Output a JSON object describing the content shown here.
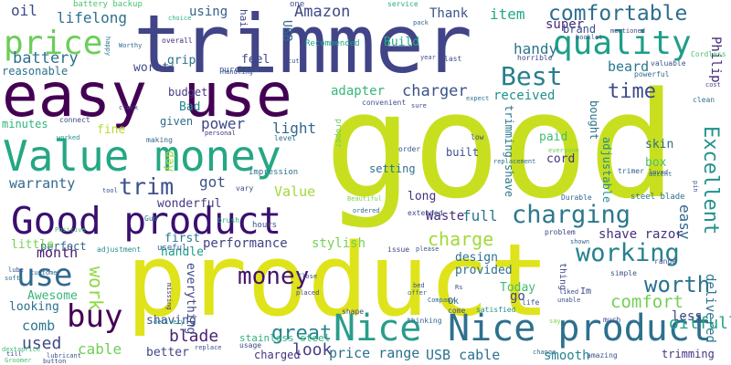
{
  "words": [
    {
      "text": "good",
      "color": "#c8df1f"
    },
    {
      "text": "product",
      "color": "#dfe31a"
    },
    {
      "text": "trimmer",
      "color": "#414487"
    },
    {
      "text": "easy use",
      "color": "#440154"
    },
    {
      "text": "Value money",
      "color": "#25a784"
    },
    {
      "text": "Good product",
      "color": "#3b0f70"
    },
    {
      "text": "Nice product",
      "color": "#2d708e"
    },
    {
      "text": "Nice",
      "color": "#2a9d8a"
    },
    {
      "text": "price",
      "color": "#6ccd5a"
    },
    {
      "text": "quality",
      "color": "#1f9e89"
    },
    {
      "text": "Best",
      "color": "#277f8e"
    },
    {
      "text": "charging",
      "color": "#2a788e"
    },
    {
      "text": "working",
      "color": "#26818e"
    },
    {
      "text": "comfortable",
      "color": "#2e6d8e"
    },
    {
      "text": "buy",
      "color": "#440154"
    },
    {
      "text": "use",
      "color": "#31688e"
    },
    {
      "text": "money",
      "color": "#471365"
    },
    {
      "text": "worth",
      "color": "#2c728e"
    },
    {
      "text": "time",
      "color": "#3e4a89"
    },
    {
      "text": "Excellent",
      "color": "#21918c"
    },
    {
      "text": "Amazon",
      "color": "#3f4788"
    },
    {
      "text": "great",
      "color": "#25848e"
    },
    {
      "text": "trim",
      "color": "#3c508b"
    },
    {
      "text": "charge",
      "color": "#a0da39"
    },
    {
      "text": "charger",
      "color": "#3b528b"
    },
    {
      "text": "comfort",
      "color": "#73d056"
    },
    {
      "text": "work",
      "color": "#90d743"
    },
    {
      "text": "battery",
      "color": "#2c728e"
    },
    {
      "text": "Philip",
      "color": "#482878"
    },
    {
      "text": "oil",
      "color": "#3e4989"
    },
    {
      "text": "lifelong",
      "color": "#2d708e"
    },
    {
      "text": "item",
      "color": "#22a785"
    },
    {
      "text": "super",
      "color": "#472c7a"
    },
    {
      "text": "handy",
      "color": "#2c738e"
    },
    {
      "text": "beard",
      "color": "#2a788e"
    },
    {
      "text": "received",
      "color": "#21918c"
    },
    {
      "text": "adapter",
      "color": "#35b779"
    },
    {
      "text": "power",
      "color": "#404688"
    },
    {
      "text": "light",
      "color": "#31688e"
    },
    {
      "text": "got",
      "color": "#3b528b"
    },
    {
      "text": "Value",
      "color": "#a0da39"
    },
    {
      "text": "warranty",
      "color": "#31688e"
    },
    {
      "text": "month",
      "color": "#481a6c"
    },
    {
      "text": "look",
      "color": "#424086"
    },
    {
      "text": "blade",
      "color": "#482475"
    },
    {
      "text": "used",
      "color": "#3e4989"
    },
    {
      "text": "comb",
      "color": "#2a788e"
    },
    {
      "text": "cable",
      "color": "#6ece58"
    },
    {
      "text": "USB cable",
      "color": "#2c728e"
    },
    {
      "text": "price range",
      "color": "#2d708e"
    },
    {
      "text": "smooth",
      "color": "#25848e"
    },
    {
      "text": "trimming",
      "color": "#46337f"
    },
    {
      "text": "oilfull",
      "color": "#20a386"
    },
    {
      "text": "delivered",
      "color": "#2a768e"
    },
    {
      "text": "less",
      "color": "#3e4a89"
    },
    {
      "text": "full",
      "color": "#2a768e"
    },
    {
      "text": "easy",
      "color": "#31688e"
    },
    {
      "text": "shave razor",
      "color": "#472f7d"
    },
    {
      "text": "performance",
      "color": "#414487"
    },
    {
      "text": "stylish",
      "color": "#75d054"
    },
    {
      "text": "Awesome",
      "color": "#35b779"
    },
    {
      "text": "shaving",
      "color": "#3b528b"
    },
    {
      "text": "better",
      "color": "#404688"
    },
    {
      "text": "charged",
      "color": "#46327e"
    },
    {
      "text": "Waste",
      "color": "#472c7a"
    },
    {
      "text": "design",
      "color": "#2c728e"
    },
    {
      "text": "provided",
      "color": "#2e6e8e"
    },
    {
      "text": "go",
      "color": "#404688"
    },
    {
      "text": "Today",
      "color": "#3fbc73"
    },
    {
      "text": "first",
      "color": "#2a788e"
    },
    {
      "text": "handle",
      "color": "#1f9a8a"
    },
    {
      "text": "wonderful",
      "color": "#443983"
    },
    {
      "text": "perfect",
      "color": "#32658e"
    },
    {
      "text": "looking",
      "color": "#2c718e"
    },
    {
      "text": "little",
      "color": "#7ad151"
    },
    {
      "text": "everything",
      "color": "#404688"
    },
    {
      "text": "long",
      "color": "#46327e"
    },
    {
      "text": "setting",
      "color": "#2d708e"
    },
    {
      "text": "built",
      "color": "#3b518b"
    },
    {
      "text": "paid",
      "color": "#3fbc73"
    },
    {
      "text": "cord",
      "color": "#46327e"
    },
    {
      "text": "skin",
      "color": "#2e6d8e"
    },
    {
      "text": "box",
      "color": "#4ac16d"
    },
    {
      "text": "adjustable",
      "color": "#218f8d"
    },
    {
      "text": "trimming shave",
      "color": "#2a788e"
    },
    {
      "text": "received",
      "color": "#21918c"
    },
    {
      "text": "bought",
      "color": "#2c738e"
    },
    {
      "text": "grip",
      "color": "#2c718e"
    },
    {
      "text": "feel",
      "color": "#3e4989"
    },
    {
      "text": "using",
      "color": "#34608d"
    },
    {
      "text": "worst",
      "color": "#3e4989"
    },
    {
      "text": "budget",
      "color": "#443983"
    },
    {
      "text": "Bad",
      "color": "#23898e"
    },
    {
      "text": "given",
      "color": "#306a8e"
    },
    {
      "text": "reasonable",
      "color": "#2d708e"
    },
    {
      "text": "minutes",
      "color": "#2fb47c"
    },
    {
      "text": "fine",
      "color": "#b5de2b"
    },
    {
      "text": "day",
      "color": "#a8db34"
    },
    {
      "text": "USB",
      "color": "#31688e"
    },
    {
      "text": "Build",
      "color": "#22a884"
    },
    {
      "text": "Thank",
      "color": "#3b528b"
    },
    {
      "text": "brand",
      "color": "#3e4a89"
    },
    {
      "text": "hair",
      "color": "#3e4989"
    },
    {
      "text": "battery backup",
      "color": "#4ac16d"
    },
    {
      "text": "Recommended",
      "color": "#1fa088"
    },
    {
      "text": "service",
      "color": "#29af7f"
    },
    {
      "text": "choice",
      "color": "#2eb37c"
    },
    {
      "text": "one",
      "color": "#3b528b"
    },
    {
      "text": "purchase",
      "color": "#34618d"
    },
    {
      "text": "overall",
      "color": "#472d7b"
    },
    {
      "text": "connect",
      "color": "#3e4989"
    },
    {
      "text": "worked",
      "color": "#20928c"
    },
    {
      "text": "making",
      "color": "#31688e"
    },
    {
      "text": "personal",
      "color": "#46327e"
    },
    {
      "text": "level",
      "color": "#2c728e"
    },
    {
      "text": "impression",
      "color": "#2c728e"
    },
    {
      "text": "vary",
      "color": "#3e4989"
    },
    {
      "text": "brush",
      "color": "#25ac82"
    },
    {
      "text": "hours",
      "color": "#3b528b"
    },
    {
      "text": "useful",
      "color": "#34608d"
    },
    {
      "text": "adjustment",
      "color": "#21918c"
    },
    {
      "text": "Gud",
      "color": "#2c728e"
    },
    {
      "text": "Positive",
      "color": "#3fbc73"
    },
    {
      "text": "lube",
      "color": "#3b528b"
    },
    {
      "text": "soft",
      "color": "#2c728e"
    },
    {
      "text": "customer",
      "color": "#31688e"
    },
    {
      "text": "till",
      "color": "#3e4989"
    },
    {
      "text": "Groomer",
      "color": "#4ac16d"
    },
    {
      "text": "lubricant",
      "color": "#3b528b"
    },
    {
      "text": "button",
      "color": "#3e4989"
    },
    {
      "text": "delivery",
      "color": "#25848e"
    },
    {
      "text": "stainless steel",
      "color": "#2eb37c"
    },
    {
      "text": "usage",
      "color": "#3e4989"
    },
    {
      "text": "replace",
      "color": "#3b528b"
    },
    {
      "text": "missing",
      "color": "#46327e"
    },
    {
      "text": "shape",
      "color": "#3e4989"
    },
    {
      "text": "thinking",
      "color": "#31688e"
    },
    {
      "text": "satisfied",
      "color": "#21918c"
    },
    {
      "text": "life",
      "color": "#3b528b"
    },
    {
      "text": "problem",
      "color": "#3e4989"
    },
    {
      "text": "Durable",
      "color": "#31688e"
    },
    {
      "text": "steel blade",
      "color": "#2c728e"
    },
    {
      "text": "trimer",
      "color": "#34608d"
    },
    {
      "text": "range",
      "color": "#3e4989"
    },
    {
      "text": "simple",
      "color": "#3b528b"
    },
    {
      "text": "much",
      "color": "#3e4989"
    },
    {
      "text": "amazing",
      "color": "#3b528b"
    },
    {
      "text": "change",
      "color": "#31688e"
    },
    {
      "text": "Cordless",
      "color": "#4ac16d"
    },
    {
      "text": "powerful",
      "color": "#31688e"
    },
    {
      "text": "valuable",
      "color": "#3b528b"
    },
    {
      "text": "clean",
      "color": "#2c728e"
    },
    {
      "text": "cost",
      "color": "#3e4989"
    },
    {
      "text": "loved",
      "color": "#3b528b"
    },
    {
      "text": "decent",
      "color": "#31688e"
    },
    {
      "text": "Beautiful",
      "color": "#7ad151"
    },
    {
      "text": "extended",
      "color": "#3e4989"
    },
    {
      "text": "order",
      "color": "#3b528b"
    },
    {
      "text": "ordered",
      "color": "#31688e"
    },
    {
      "text": "replacement",
      "color": "#2c728e"
    },
    {
      "text": "issue",
      "color": "#3e4989"
    },
    {
      "text": "please",
      "color": "#3b528b"
    },
    {
      "text": "Ok",
      "color": "#31688e"
    },
    {
      "text": "come",
      "color": "#3e4989"
    },
    {
      "text": "bed",
      "color": "#3b528b"
    },
    {
      "text": "offer",
      "color": "#2c728e"
    },
    {
      "text": "placed",
      "color": "#3e4989"
    },
    {
      "text": "Close",
      "color": "#3b528b"
    },
    {
      "text": "low",
      "color": "#3e4989"
    },
    {
      "text": "proper",
      "color": "#6ece58"
    },
    {
      "text": "horrible",
      "color": "#3e4989"
    },
    {
      "text": "last",
      "color": "#3b528b"
    },
    {
      "text": "Worthy",
      "color": "#31688e"
    },
    {
      "text": "handling",
      "color": "#3e4989"
    },
    {
      "text": "cut",
      "color": "#3b528b"
    },
    {
      "text": "happy",
      "color": "#2c728e"
    },
    {
      "text": "clock",
      "color": "#3e4989"
    },
    {
      "text": "dextaprice",
      "color": "#3fbc73"
    },
    {
      "text": "booklet",
      "color": "#3b528b"
    },
    {
      "text": "mentioned",
      "color": "#3e4989"
    },
    {
      "text": "pack",
      "color": "#31688e"
    },
    {
      "text": "year",
      "color": "#3b528b"
    },
    {
      "text": "sure",
      "color": "#3e4989"
    },
    {
      "text": "expect",
      "color": "#2c728e"
    },
    {
      "text": "convenient",
      "color": "#3b528b"
    },
    {
      "text": "everyone",
      "color": "#6ece58"
    },
    {
      "text": "thing",
      "color": "#3e4989"
    },
    {
      "text": "shown",
      "color": "#31688e"
    },
    {
      "text": "unable",
      "color": "#3b528b"
    },
    {
      "text": "liked",
      "color": "#3e4989"
    },
    {
      "text": "say",
      "color": "#7ad151"
    },
    {
      "text": "Im",
      "color": "#3e4989"
    },
    {
      "text": "pin",
      "color": "#3b528b"
    },
    {
      "text": "Company",
      "color": "#31688e"
    },
    {
      "text": "Rs",
      "color": "#3e4989"
    },
    {
      "text": "tool",
      "color": "#3b528b"
    }
  ]
}
